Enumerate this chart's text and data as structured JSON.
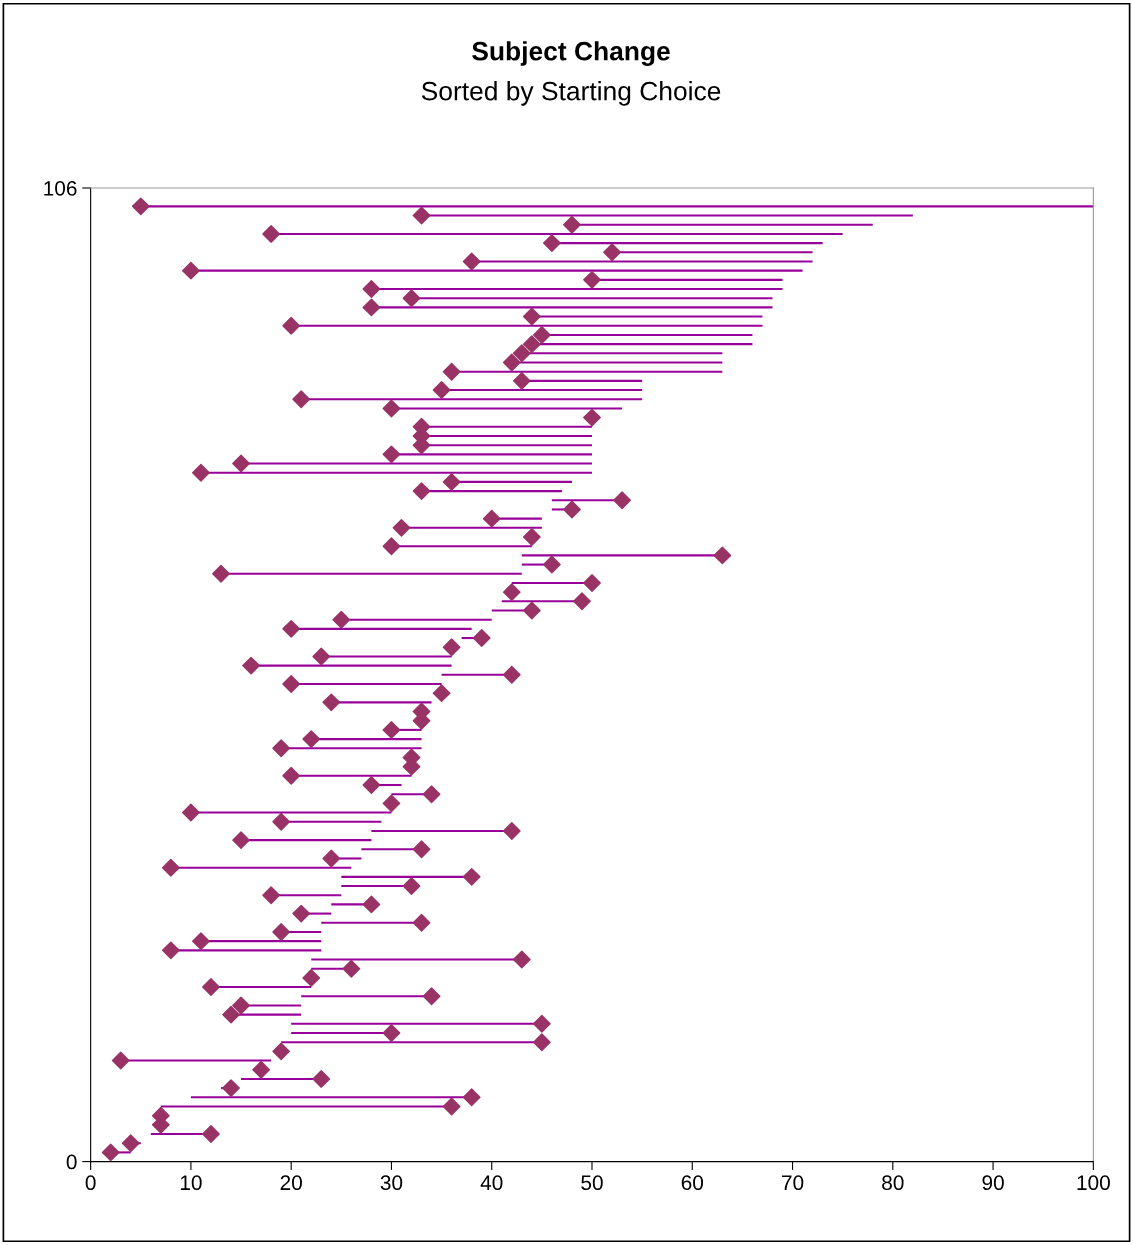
{
  "chart_data": {
    "type": "scatter",
    "title": "Subject Change",
    "subtitle": "Sorted by Starting Choice",
    "xlim": [
      0,
      100
    ],
    "xticks": [
      0,
      10,
      20,
      30,
      40,
      50,
      60,
      70,
      80,
      90,
      100
    ],
    "ylim": [
      0,
      106
    ],
    "yticks": [
      0,
      106
    ],
    "grid": false,
    "legend": false,
    "marker": "diamond",
    "series": [
      {
        "color": "#993366",
        "x": [
          2,
          4,
          12,
          7,
          7,
          36,
          38,
          14,
          23,
          17,
          3,
          19,
          45,
          30,
          45,
          14,
          15,
          34,
          12,
          22,
          26,
          43,
          8,
          11,
          19,
          33,
          21,
          28,
          18,
          32,
          38,
          8,
          24,
          33,
          15,
          42,
          19,
          10,
          30,
          34,
          28,
          20,
          32,
          32,
          19,
          22,
          30,
          33,
          33,
          24,
          35,
          20,
          42,
          16,
          23,
          36,
          39,
          20,
          25,
          44,
          49,
          42,
          50,
          13,
          46,
          63,
          30,
          44,
          31,
          40,
          48,
          53,
          33,
          36,
          11,
          15,
          30,
          33,
          33,
          33,
          50,
          30,
          21,
          35,
          43,
          36,
          42,
          43,
          44,
          45,
          20,
          44,
          28,
          32,
          28,
          50,
          10,
          38,
          52,
          46,
          18,
          48,
          33,
          5
        ],
        "values": [
          1,
          2,
          3,
          4,
          5,
          6,
          7,
          8,
          9,
          10,
          11,
          12,
          13,
          14,
          15,
          16,
          17,
          18,
          19,
          20,
          21,
          22,
          23,
          24,
          25,
          26,
          27,
          28,
          29,
          30,
          31,
          32,
          33,
          34,
          35,
          36,
          37,
          38,
          39,
          40,
          41,
          42,
          43,
          44,
          45,
          46,
          47,
          48,
          49,
          50,
          51,
          52,
          53,
          54,
          55,
          56,
          57,
          58,
          59,
          60,
          61,
          62,
          63,
          64,
          65,
          66,
          67,
          68,
          69,
          70,
          71,
          72,
          73,
          74,
          75,
          76,
          77,
          78,
          79,
          80,
          81,
          82,
          83,
          84,
          85,
          86,
          87,
          88,
          89,
          90,
          91,
          92,
          93,
          94,
          95,
          96,
          97,
          98,
          99,
          100,
          101,
          102,
          103,
          104
        ],
        "xerrors": [
          [
            2,
            4
          ],
          [
            4,
            5
          ],
          [
            6,
            12
          ],
          null,
          null,
          [
            7,
            36
          ],
          [
            10,
            38
          ],
          [
            13,
            14
          ],
          [
            15,
            23
          ],
          null,
          [
            3,
            18
          ],
          null,
          [
            19,
            45
          ],
          [
            20,
            30
          ],
          [
            20,
            45
          ],
          [
            14,
            21
          ],
          [
            15,
            21
          ],
          [
            21,
            34
          ],
          [
            12,
            22
          ],
          null,
          [
            22,
            26
          ],
          [
            22,
            43
          ],
          [
            8,
            23
          ],
          [
            11,
            23
          ],
          [
            19,
            23
          ],
          [
            23,
            33
          ],
          [
            21,
            24
          ],
          [
            24,
            28
          ],
          [
            18,
            25
          ],
          [
            25,
            32
          ],
          [
            25,
            38
          ],
          [
            8,
            26
          ],
          [
            24,
            27
          ],
          [
            27,
            33
          ],
          [
            15,
            28
          ],
          [
            28,
            42
          ],
          [
            19,
            29
          ],
          [
            10,
            30
          ],
          null,
          [
            30,
            34
          ],
          [
            28,
            31
          ],
          [
            20,
            32
          ],
          null,
          null,
          [
            19,
            33
          ],
          [
            22,
            33
          ],
          [
            30,
            33
          ],
          null,
          null,
          [
            24,
            34
          ],
          null,
          [
            20,
            35
          ],
          [
            35,
            42
          ],
          [
            16,
            36
          ],
          [
            23,
            36
          ],
          null,
          [
            37,
            39
          ],
          [
            20,
            38
          ],
          [
            25,
            40
          ],
          [
            40,
            44
          ],
          [
            41,
            49
          ],
          null,
          [
            42,
            50
          ],
          [
            13,
            43
          ],
          [
            43,
            46
          ],
          [
            43,
            63
          ],
          [
            30,
            44
          ],
          null,
          [
            31,
            45
          ],
          [
            40,
            45
          ],
          [
            46,
            48
          ],
          [
            46,
            53
          ],
          [
            33,
            47
          ],
          [
            36,
            48
          ],
          [
            11,
            50
          ],
          [
            15,
            50
          ],
          [
            30,
            50
          ],
          [
            33,
            50
          ],
          [
            33,
            50
          ],
          [
            33,
            50
          ],
          null,
          [
            30,
            53
          ],
          [
            21,
            55
          ],
          [
            35,
            55
          ],
          [
            43,
            55
          ],
          [
            36,
            63
          ],
          [
            42,
            63
          ],
          [
            43,
            63
          ],
          [
            44,
            66
          ],
          [
            45,
            66
          ],
          [
            20,
            67
          ],
          [
            44,
            67
          ],
          [
            28,
            68
          ],
          [
            32,
            68
          ],
          [
            28,
            69
          ],
          [
            50,
            69
          ],
          [
            10,
            71
          ],
          [
            38,
            72
          ],
          [
            52,
            72
          ],
          [
            46,
            73
          ],
          [
            18,
            75
          ],
          [
            48,
            78
          ],
          [
            33,
            82
          ],
          [
            5,
            100
          ]
        ]
      }
    ]
  }
}
